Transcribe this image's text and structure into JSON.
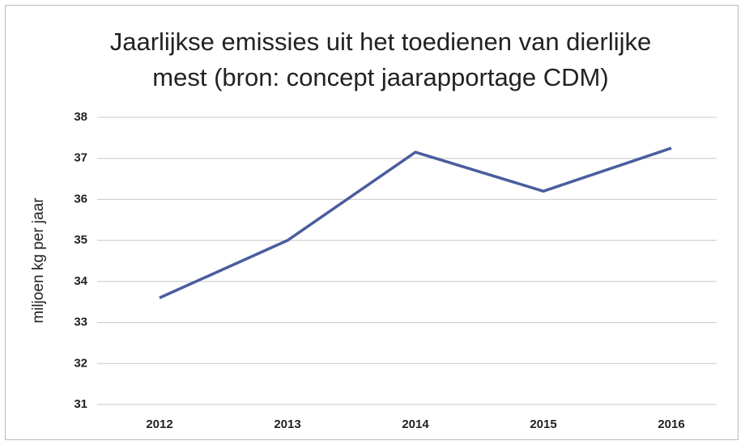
{
  "chart_data": {
    "type": "line",
    "title": "Jaarlijkse emissies uit het toedienen van dierlijke mest (bron: concept jaarapportage CDM)",
    "y_label": "miljoen kg per jaar",
    "categories": [
      "2012",
      "2013",
      "2014",
      "2015",
      "2016"
    ],
    "values": [
      33.6,
      35.0,
      37.15,
      36.2,
      37.25
    ],
    "color": "#4a5d9e",
    "ylim": [
      31,
      38
    ],
    "yticks": [
      31,
      32,
      33,
      34,
      35,
      36,
      37,
      38
    ],
    "grid": true
  }
}
